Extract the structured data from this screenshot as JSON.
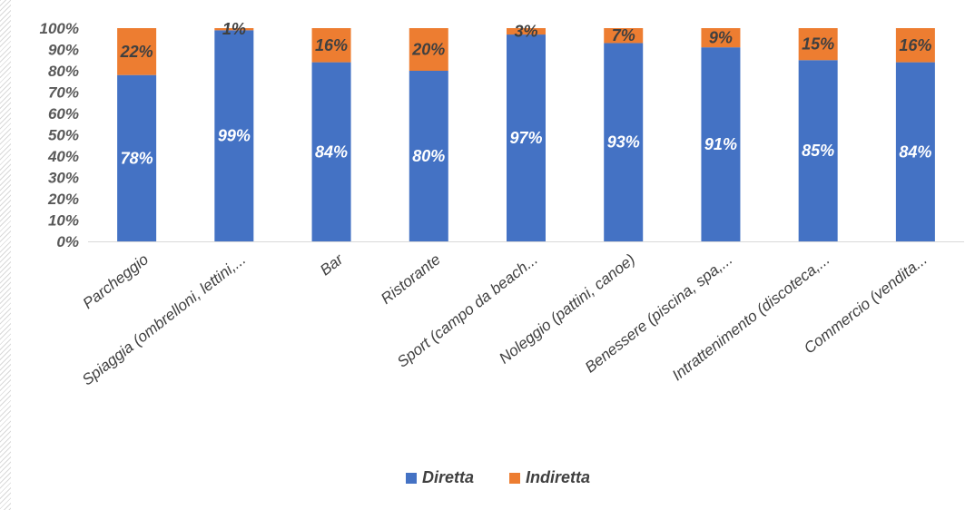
{
  "chart_data": {
    "type": "bar",
    "stacked": true,
    "categories": [
      "Parcheggio",
      "Spiaggia (ombrelloni, lettini,...",
      "Bar",
      "Ristorante",
      "Sport (campo da beach...",
      "Noleggio (pattini, canoe)",
      "Benessere (piscina, spa,...",
      "Intrattenimento (discoteca,...",
      "Commercio (vendita..."
    ],
    "series": [
      {
        "name": "Diretta",
        "color": "#4472c4",
        "values": [
          78,
          99,
          84,
          80,
          97,
          93,
          91,
          85,
          84
        ],
        "labels": [
          "78%",
          "99%",
          "84%",
          "80%",
          "97%",
          "93%",
          "91%",
          "85%",
          "84%"
        ]
      },
      {
        "name": "Indiretta",
        "color": "#ed7d31",
        "values": [
          22,
          1,
          16,
          20,
          3,
          7,
          9,
          15,
          16
        ],
        "labels": [
          "22%",
          "1%",
          "16%",
          "20%",
          "3%",
          "7%",
          "9%",
          "15%",
          "16%"
        ]
      }
    ],
    "y_ticks": [
      "0%",
      "10%",
      "20%",
      "30%",
      "40%",
      "50%",
      "60%",
      "70%",
      "80%",
      "90%",
      "100%"
    ],
    "ylim": [
      0,
      100
    ],
    "grid": false,
    "legend_position": "bottom"
  }
}
